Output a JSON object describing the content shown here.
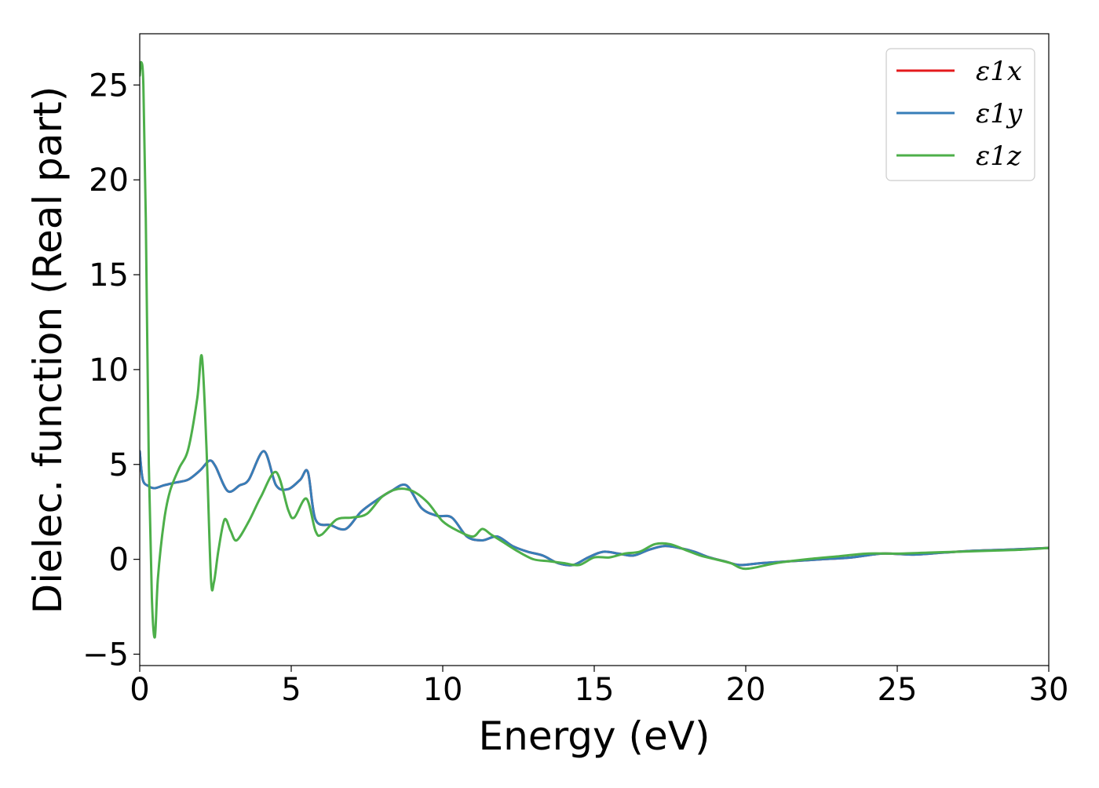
{
  "chart_data": {
    "type": "line",
    "title": "",
    "xlabel": "Energy (eV)",
    "ylabel": "Dielec. function (Real part)",
    "xlim": [
      0,
      30
    ],
    "ylim": [
      -5.6,
      27.7
    ],
    "xticks": [
      0,
      5,
      10,
      15,
      20,
      25,
      30
    ],
    "yticks": [
      -5,
      0,
      5,
      10,
      15,
      20,
      25
    ],
    "xtick_labels": [
      "0",
      "5",
      "10",
      "15",
      "20",
      "25",
      "30"
    ],
    "ytick_labels": [
      "−5",
      "0",
      "5",
      "10",
      "15",
      "20",
      "25"
    ],
    "grid": false,
    "legend_position": "top-right",
    "series": [
      {
        "name": "ε1x",
        "color": "#e41a1c",
        "x": [
          0,
          0.1,
          0.3,
          0.5,
          0.8,
          1.2,
          1.6,
          2.0,
          2.3,
          2.5,
          2.9,
          3.3,
          3.6,
          4.1,
          4.5,
          4.9,
          5.3,
          5.55,
          5.8,
          6.3,
          6.8,
          7.3,
          7.8,
          8.3,
          8.8,
          9.3,
          9.8,
          10.3,
          10.8,
          11.3,
          11.8,
          12.3,
          12.8,
          13.3,
          13.8,
          14.3,
          14.8,
          15.3,
          15.8,
          16.3,
          16.8,
          17.3,
          17.8,
          18.3,
          18.8,
          19.3,
          19.8,
          20.5,
          21.5,
          22.5,
          23.5,
          24.5,
          25.5,
          26.5,
          27.5,
          28.5,
          30
        ],
        "y": [
          5.7,
          4.2,
          3.85,
          3.75,
          3.9,
          4.05,
          4.2,
          4.7,
          5.2,
          4.9,
          3.6,
          3.9,
          4.2,
          5.7,
          3.9,
          3.7,
          4.2,
          4.6,
          2.1,
          1.8,
          1.6,
          2.5,
          3.1,
          3.6,
          3.9,
          2.7,
          2.3,
          2.2,
          1.2,
          1.0,
          1.2,
          0.7,
          0.4,
          0.2,
          -0.2,
          -0.3,
          0.1,
          0.4,
          0.3,
          0.2,
          0.5,
          0.7,
          0.6,
          0.4,
          0.1,
          -0.1,
          -0.3,
          -0.2,
          -0.1,
          0.0,
          0.1,
          0.3,
          0.25,
          0.35,
          0.45,
          0.5,
          0.6
        ]
      },
      {
        "name": "ε1y",
        "color": "#377eb8",
        "x": [
          0,
          0.1,
          0.3,
          0.5,
          0.8,
          1.2,
          1.6,
          2.0,
          2.3,
          2.5,
          2.9,
          3.3,
          3.6,
          4.1,
          4.5,
          4.9,
          5.3,
          5.55,
          5.8,
          6.3,
          6.8,
          7.3,
          7.8,
          8.3,
          8.8,
          9.3,
          9.8,
          10.3,
          10.8,
          11.3,
          11.8,
          12.3,
          12.8,
          13.3,
          13.8,
          14.3,
          14.8,
          15.3,
          15.8,
          16.3,
          16.8,
          17.3,
          17.8,
          18.3,
          18.8,
          19.3,
          19.8,
          20.5,
          21.5,
          22.5,
          23.5,
          24.5,
          25.5,
          26.5,
          27.5,
          28.5,
          30
        ],
        "y": [
          5.7,
          4.2,
          3.85,
          3.75,
          3.9,
          4.05,
          4.2,
          4.7,
          5.2,
          4.9,
          3.6,
          3.9,
          4.2,
          5.7,
          3.9,
          3.7,
          4.2,
          4.6,
          2.1,
          1.8,
          1.6,
          2.5,
          3.1,
          3.6,
          3.9,
          2.7,
          2.3,
          2.2,
          1.2,
          1.0,
          1.2,
          0.7,
          0.4,
          0.2,
          -0.2,
          -0.3,
          0.1,
          0.4,
          0.3,
          0.2,
          0.5,
          0.7,
          0.6,
          0.4,
          0.1,
          -0.1,
          -0.3,
          -0.2,
          -0.1,
          0.0,
          0.1,
          0.3,
          0.25,
          0.35,
          0.45,
          0.5,
          0.6
        ]
      },
      {
        "name": "ε1z",
        "color": "#4daf4a",
        "x": [
          0,
          0.05,
          0.12,
          0.2,
          0.3,
          0.4,
          0.5,
          0.6,
          0.8,
          1.0,
          1.3,
          1.6,
          1.9,
          2.05,
          2.2,
          2.35,
          2.45,
          2.6,
          2.8,
          3.0,
          3.2,
          3.6,
          4.0,
          4.5,
          4.9,
          5.1,
          5.5,
          5.8,
          6.0,
          6.5,
          7.0,
          7.5,
          8.0,
          8.5,
          9.0,
          9.5,
          10.0,
          10.5,
          11.0,
          11.3,
          11.6,
          12.0,
          12.5,
          13.0,
          13.5,
          14.0,
          14.5,
          15.0,
          15.5,
          16.0,
          16.5,
          17.0,
          17.5,
          18.0,
          18.5,
          19.0,
          19.5,
          20.0,
          21.0,
          22.0,
          23.0,
          24.0,
          25.0,
          26.0,
          27.0,
          28.0,
          29.0,
          30
        ],
        "y": [
          25.5,
          26.2,
          25.0,
          18.0,
          5.0,
          -2.0,
          -4.1,
          -1.0,
          2.0,
          3.6,
          4.8,
          5.8,
          8.5,
          10.7,
          6.0,
          -1.0,
          -1.2,
          0.5,
          2.1,
          1.5,
          1.0,
          2.0,
          3.3,
          4.6,
          2.6,
          2.2,
          3.2,
          1.5,
          1.3,
          2.1,
          2.2,
          2.4,
          3.3,
          3.7,
          3.6,
          3.0,
          2.0,
          1.5,
          1.2,
          1.6,
          1.3,
          0.9,
          0.4,
          0.0,
          -0.1,
          -0.2,
          -0.3,
          0.1,
          0.1,
          0.3,
          0.4,
          0.8,
          0.8,
          0.5,
          0.2,
          0.0,
          -0.2,
          -0.5,
          -0.2,
          0.0,
          0.15,
          0.3,
          0.3,
          0.35,
          0.4,
          0.45,
          0.5,
          0.6
        ]
      }
    ],
    "legend_entries": [
      "ε1x",
      "ε1y",
      "ε1z"
    ]
  }
}
